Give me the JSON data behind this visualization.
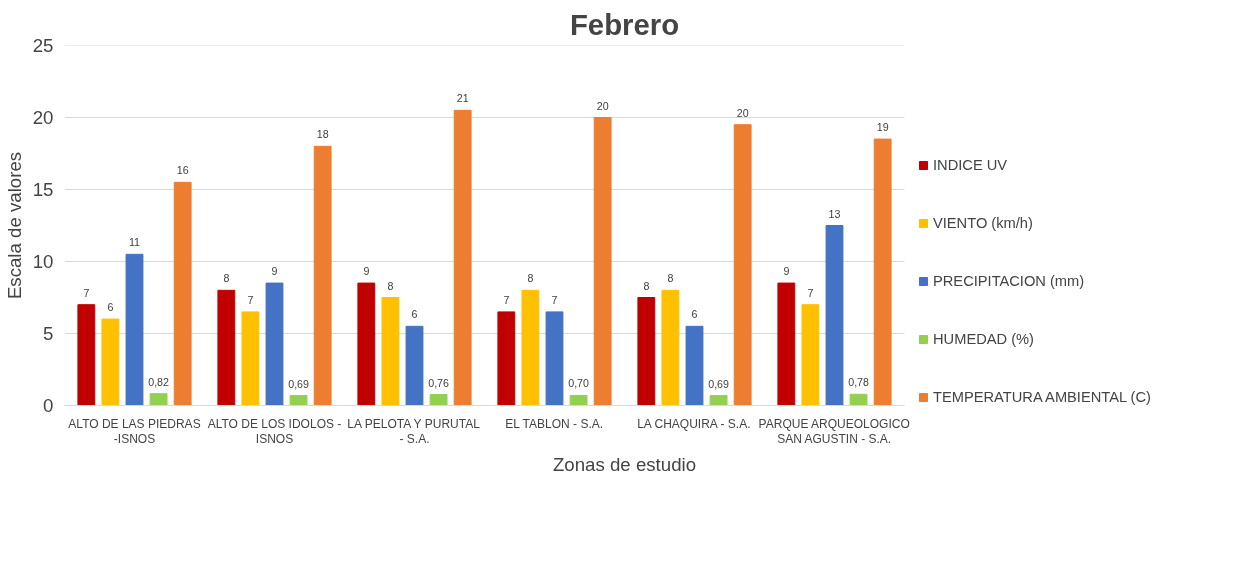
{
  "chart_data": {
    "type": "bar",
    "title": "Febrero",
    "xlabel": "Zonas de estudio",
    "ylabel": "Escala de valores",
    "categories": [
      "ALTO DE LAS PIEDRAS -ISNOS",
      "ALTO DE LOS IDOLOS - ISNOS",
      "LA PELOTA Y PURUTAL - S.A.",
      "EL TABLON - S.A.",
      "LA CHAQUIRA - S.A.",
      "PARQUE ARQUEOLOGICO SAN AGUSTIN - S.A."
    ],
    "series": [
      {
        "name": "INDICE UV",
        "color": "#c00000",
        "values": [
          7,
          8,
          8.5,
          6.5,
          7.5,
          8.5
        ],
        "value_labels": [
          "7",
          "8",
          "9",
          "7",
          "8",
          "9"
        ]
      },
      {
        "name": "VIENTO (km/h)",
        "color": "#ffc000",
        "values": [
          6,
          6.5,
          7.5,
          8,
          8,
          7
        ],
        "value_labels": [
          "6",
          "7",
          "8",
          "8",
          "8",
          "7"
        ]
      },
      {
        "name": "PRECIPITACION (mm)",
        "color": "#4472c4",
        "values": [
          10.5,
          8.5,
          5.5,
          6.5,
          5.5,
          12.5
        ],
        "value_labels": [
          "11",
          "9",
          "6",
          "7",
          "6",
          "13"
        ]
      },
      {
        "name": "HUMEDAD (%)",
        "color": "#92d050",
        "values": [
          0.82,
          0.69,
          0.76,
          0.7,
          0.69,
          0.78
        ],
        "value_labels": [
          "0,82",
          "0,69",
          "0,76",
          "0,70",
          "0,69",
          "0,78"
        ]
      },
      {
        "name": "TEMPERATURA AMBIENTAL (C)",
        "color": "#ed7d31",
        "values": [
          15.5,
          18,
          20.5,
          20,
          19.5,
          18.5
        ],
        "value_labels": [
          "16",
          "18",
          "21",
          "20",
          "20",
          "19"
        ]
      }
    ],
    "ylim": [
      0,
      25
    ],
    "yticks": [
      0,
      5,
      10,
      15,
      20,
      25
    ],
    "grid": "y",
    "legend": "right"
  }
}
